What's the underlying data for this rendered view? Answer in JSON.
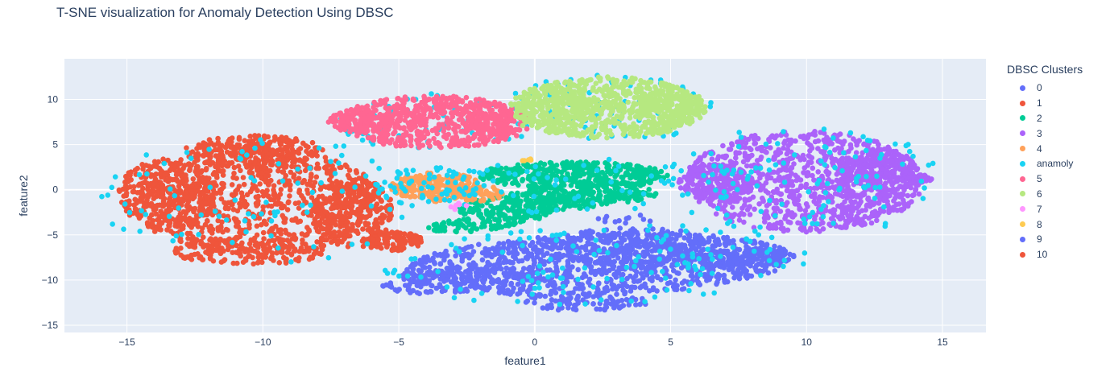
{
  "chart_data": {
    "type": "scatter",
    "title": "T-SNE visualization for Anomaly Detection Using DBSC",
    "xlabel": "feature1",
    "ylabel": "feature2",
    "xlim": [
      -17.3,
      16.6
    ],
    "ylim": [
      -15.8,
      14.5
    ],
    "x_ticks": [
      -15,
      -10,
      -5,
      0,
      5,
      10,
      15
    ],
    "x_tick_labels": [
      "−15",
      "−10",
      "−5",
      "0",
      "5",
      "10",
      "15"
    ],
    "y_ticks": [
      -15,
      -10,
      -5,
      0,
      5,
      10
    ],
    "y_tick_labels": [
      "−15",
      "−10",
      "−5",
      "0",
      "5",
      "10"
    ],
    "grid": true,
    "plot_bgcolor": "#E5ECF6",
    "legend_title": "DBSC Clusters",
    "legend_position": "right",
    "series": [
      {
        "name": "0",
        "color": "#636EFA",
        "clusters": [
          {
            "cx": 2.3,
            "cy": -8.3,
            "rx": 7.2,
            "ry": 3.4,
            "rot": 8,
            "n": 1000
          },
          {
            "cx": 3.7,
            "cy": -6.4,
            "rx": 3.2,
            "ry": 2.2,
            "rot": 0,
            "n": 240
          },
          {
            "cx": 7.8,
            "cy": -7.6,
            "rx": 1.8,
            "ry": 1.0,
            "rot": 5,
            "n": 140
          },
          {
            "cx": -2.8,
            "cy": -10.0,
            "rx": 3.0,
            "ry": 1.4,
            "rot": 15,
            "n": 150
          },
          {
            "cx": 1.8,
            "cy": -12.4,
            "rx": 2.4,
            "ry": 1.0,
            "rot": 0,
            "n": 90
          }
        ]
      },
      {
        "name": "1",
        "color": "#EF553B",
        "clusters": [
          {
            "cx": -10.2,
            "cy": -1.2,
            "rx": 4.6,
            "ry": 6.0,
            "rot": 0,
            "n": 900
          },
          {
            "cx": -13.5,
            "cy": -0.5,
            "rx": 1.8,
            "ry": 4.0,
            "rot": 0,
            "n": 260
          },
          {
            "cx": -6.7,
            "cy": -2.5,
            "rx": 1.5,
            "ry": 4.0,
            "rot": 0,
            "n": 240
          },
          {
            "cx": -5.2,
            "cy": -5.7,
            "rx": 1.1,
            "ry": 1.1,
            "rot": 0,
            "n": 120
          },
          {
            "cx": -10.3,
            "cy": 4.2,
            "rx": 2.6,
            "ry": 1.8,
            "rot": 0,
            "n": 220
          },
          {
            "cx": -10.5,
            "cy": -6.8,
            "rx": 2.8,
            "ry": 1.5,
            "rot": 0,
            "n": 160
          }
        ]
      },
      {
        "name": "2",
        "color": "#00CC96",
        "clusters": [
          {
            "cx": 1.4,
            "cy": 1.6,
            "rx": 3.5,
            "ry": 1.5,
            "rot": 0,
            "n": 380
          },
          {
            "cx": 0.7,
            "cy": -1.0,
            "rx": 3.8,
            "ry": 1.4,
            "rot": 22,
            "n": 320
          },
          {
            "cx": 2.3,
            "cy": -0.8,
            "rx": 2.2,
            "ry": 0.8,
            "rot": 8,
            "n": 120
          },
          {
            "cx": -1.8,
            "cy": -3.6,
            "rx": 2.5,
            "ry": 0.8,
            "rot": 25,
            "n": 120
          }
        ]
      },
      {
        "name": "3",
        "color": "#AB63FA",
        "clusters": [
          {
            "cx": 9.9,
            "cy": 0.9,
            "rx": 4.4,
            "ry": 5.6,
            "rot": 0,
            "n": 900
          },
          {
            "cx": 12.6,
            "cy": 1.5,
            "rx": 1.5,
            "ry": 3.2,
            "rot": 0,
            "n": 240
          },
          {
            "cx": 6.7,
            "cy": 0.8,
            "rx": 1.4,
            "ry": 2.0,
            "rot": 0,
            "n": 200
          },
          {
            "cx": 14.0,
            "cy": 1.2,
            "rx": 0.6,
            "ry": 0.5,
            "rot": 0,
            "n": 40
          }
        ]
      },
      {
        "name": "4",
        "color": "#FFA15A",
        "clusters": [
          {
            "cx": -3.6,
            "cy": 0.3,
            "rx": 1.7,
            "ry": 1.6,
            "rot": 0,
            "n": 250
          },
          {
            "cx": -2.1,
            "cy": -0.4,
            "rx": 1.1,
            "ry": 0.9,
            "rot": 0,
            "n": 60
          }
        ]
      },
      {
        "name": "anamoly",
        "color": "#19D3F3",
        "clusters": [
          {
            "cx": -10.2,
            "cy": -1.2,
            "rx": 5.8,
            "ry": 7.4,
            "rot": 0,
            "n": 90
          },
          {
            "cx": 9.9,
            "cy": 1.0,
            "rx": 5.2,
            "ry": 6.2,
            "rot": 0,
            "n": 120
          },
          {
            "cx": 2.3,
            "cy": -8.3,
            "rx": 8.0,
            "ry": 4.4,
            "rot": 8,
            "n": 130
          },
          {
            "cx": 2.7,
            "cy": 9.0,
            "rx": 3.9,
            "ry": 3.7,
            "rot": 0,
            "n": 90
          },
          {
            "cx": -3.6,
            "cy": 0.3,
            "rx": 2.3,
            "ry": 2.2,
            "rot": 0,
            "n": 70
          },
          {
            "cx": -3.7,
            "cy": 7.5,
            "rx": 3.8,
            "ry": 3.2,
            "rot": 0,
            "n": 60
          },
          {
            "cx": 1.4,
            "cy": 0.3,
            "rx": 4.3,
            "ry": 3.4,
            "rot": 12,
            "n": 40
          }
        ]
      },
      {
        "name": "5",
        "color": "#FF6692",
        "clusters": [
          {
            "cx": -3.7,
            "cy": 7.5,
            "rx": 3.6,
            "ry": 2.9,
            "rot": 0,
            "n": 600
          },
          {
            "cx": -6.4,
            "cy": 7.6,
            "rx": 1.2,
            "ry": 1.3,
            "rot": 0,
            "n": 120
          },
          {
            "cx": -1.7,
            "cy": 7.8,
            "rx": 1.0,
            "ry": 2.0,
            "rot": 0,
            "n": 90
          }
        ]
      },
      {
        "name": "6",
        "color": "#B6E880",
        "clusters": [
          {
            "cx": 2.7,
            "cy": 9.1,
            "rx": 3.6,
            "ry": 3.4,
            "rot": 0,
            "n": 700
          },
          {
            "cx": 0.6,
            "cy": 8.7,
            "rx": 1.4,
            "ry": 2.6,
            "rot": 0,
            "n": 140
          },
          {
            "cx": 4.9,
            "cy": 8.9,
            "rx": 1.2,
            "ry": 2.4,
            "rot": 0,
            "n": 140
          }
        ]
      },
      {
        "name": "7",
        "color": "#FF97FF",
        "clusters": [
          {
            "cx": -2.8,
            "cy": -1.9,
            "rx": 0.4,
            "ry": 0.4,
            "rot": 0,
            "n": 6
          }
        ]
      },
      {
        "name": "8",
        "color": "#FECB52",
        "clusters": [
          {
            "cx": -0.3,
            "cy": 3.3,
            "rx": 0.3,
            "ry": 0.2,
            "rot": 0,
            "n": 5
          }
        ]
      },
      {
        "name": "9",
        "color": "#636EFA",
        "clusters": [
          {
            "cx": 3.4,
            "cy": -3.2,
            "rx": 1.2,
            "ry": 0.5,
            "rot": 0,
            "n": 12
          }
        ]
      },
      {
        "name": "10",
        "color": "#EF553B",
        "clusters": [
          {
            "cx": -12.9,
            "cy": -0.4,
            "rx": 0.4,
            "ry": 0.3,
            "rot": 0,
            "n": 8
          }
        ]
      }
    ]
  }
}
